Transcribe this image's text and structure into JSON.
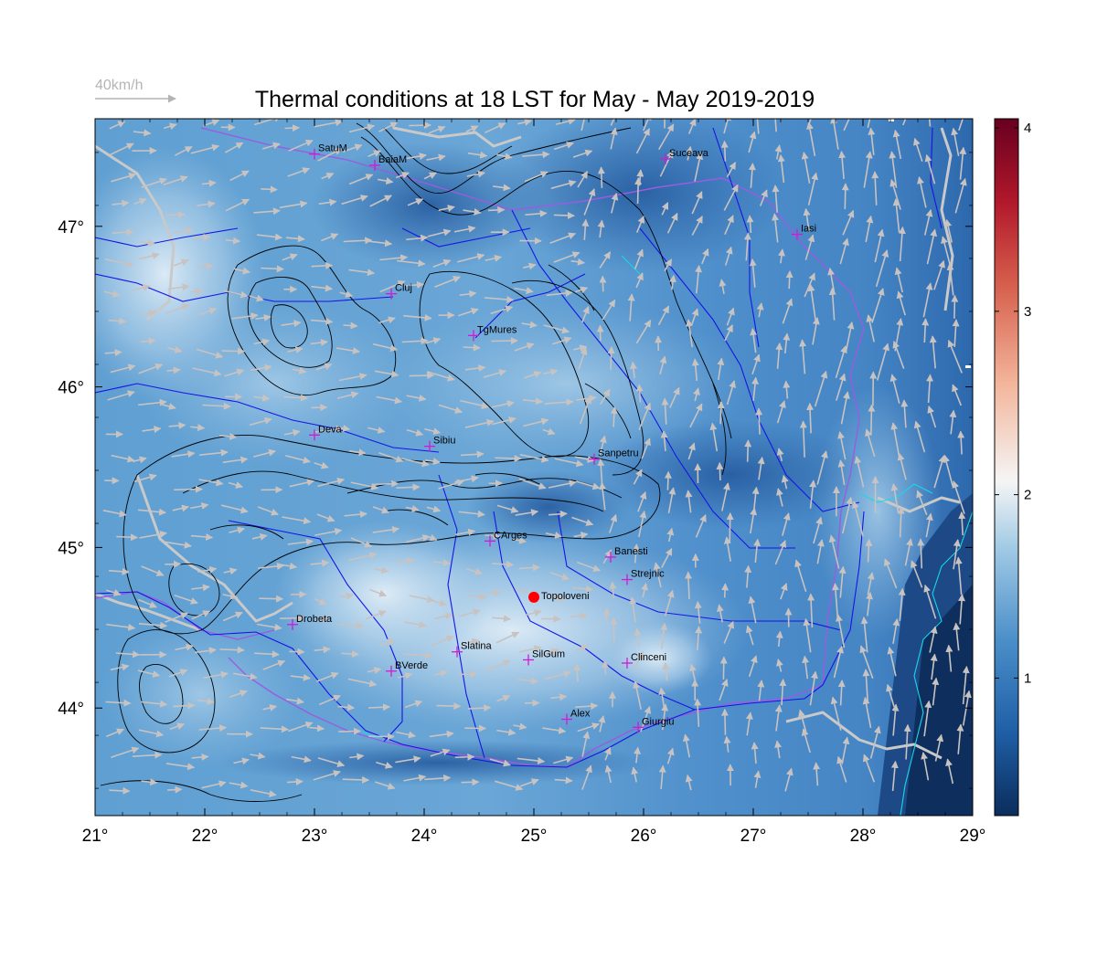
{
  "title": "Thermal conditions at 18 LST for May - May  2019-2019",
  "reference_vector": {
    "label": "40km/h",
    "color": "#b4b4b4"
  },
  "axes": {
    "lon_range": [
      21,
      29
    ],
    "lat_range": [
      43.33,
      47.67
    ],
    "x_ticks": [
      {
        "value": 21,
        "label": "21°"
      },
      {
        "value": 22,
        "label": "22°"
      },
      {
        "value": 23,
        "label": "23°"
      },
      {
        "value": 24,
        "label": "24°"
      },
      {
        "value": 25,
        "label": "25°"
      },
      {
        "value": 26,
        "label": "26°"
      },
      {
        "value": 27,
        "label": "27°"
      },
      {
        "value": 28,
        "label": "28°"
      },
      {
        "value": 29,
        "label": "29°"
      }
    ],
    "y_ticks": [
      {
        "value": 44,
        "label": "44°"
      },
      {
        "value": 45,
        "label": "45°"
      },
      {
        "value": 46,
        "label": "46°"
      },
      {
        "value": 47,
        "label": "47°"
      }
    ]
  },
  "colorbar": {
    "range": [
      0.25,
      4.05
    ],
    "ticks": [
      {
        "value": 1,
        "label": "1"
      },
      {
        "value": 2,
        "label": "2"
      },
      {
        "value": 3,
        "label": "3"
      },
      {
        "value": 4,
        "label": "4"
      }
    ],
    "colors": [
      "#0b2d5c",
      "#1f5fa6",
      "#4a8ec9",
      "#9ec8e4",
      "#f5f5f5",
      "#f3b59b",
      "#d6604d",
      "#b2182b",
      "#67001f"
    ]
  },
  "colors": {
    "rivers": "#1515e6",
    "borders": "#c9c9c9",
    "admin": "#9a5ce0",
    "coast": "#19d7e6",
    "contours": "#000000",
    "wind": "#c8c2c0",
    "city_marker": "#d21ad2",
    "highlight": "#ff0000"
  },
  "cities": [
    {
      "name": "SatuM",
      "lon": 23.0,
      "lat": 47.45
    },
    {
      "name": "BaiaM",
      "lon": 23.55,
      "lat": 47.38
    },
    {
      "name": "Suceava",
      "lon": 26.2,
      "lat": 47.42
    },
    {
      "name": "Iasi",
      "lon": 27.4,
      "lat": 46.95
    },
    {
      "name": "Cluj",
      "lon": 23.7,
      "lat": 46.58
    },
    {
      "name": "TgMures",
      "lon": 24.45,
      "lat": 46.32
    },
    {
      "name": "Deva",
      "lon": 23.0,
      "lat": 45.7
    },
    {
      "name": "Sibiu",
      "lon": 24.05,
      "lat": 45.63
    },
    {
      "name": "Sanpetru",
      "lon": 25.55,
      "lat": 45.55
    },
    {
      "name": "CArges",
      "lon": 24.6,
      "lat": 45.04
    },
    {
      "name": "Banesti",
      "lon": 25.7,
      "lat": 44.94
    },
    {
      "name": "Strejnic",
      "lon": 25.85,
      "lat": 44.8
    },
    {
      "name": "Drobeta",
      "lon": 22.8,
      "lat": 44.52
    },
    {
      "name": "Slatina",
      "lon": 24.3,
      "lat": 44.35
    },
    {
      "name": "SilGum",
      "lon": 24.95,
      "lat": 44.3
    },
    {
      "name": "Clinceni",
      "lon": 25.85,
      "lat": 44.28
    },
    {
      "name": "BVerde",
      "lon": 23.7,
      "lat": 44.23
    },
    {
      "name": "Alex",
      "lon": 25.3,
      "lat": 43.93
    },
    {
      "name": "Giurgiu",
      "lon": 25.95,
      "lat": 43.88
    }
  ],
  "highlight_site": {
    "name": "Topoloveni",
    "lon": 25.0,
    "lat": 44.69
  }
}
